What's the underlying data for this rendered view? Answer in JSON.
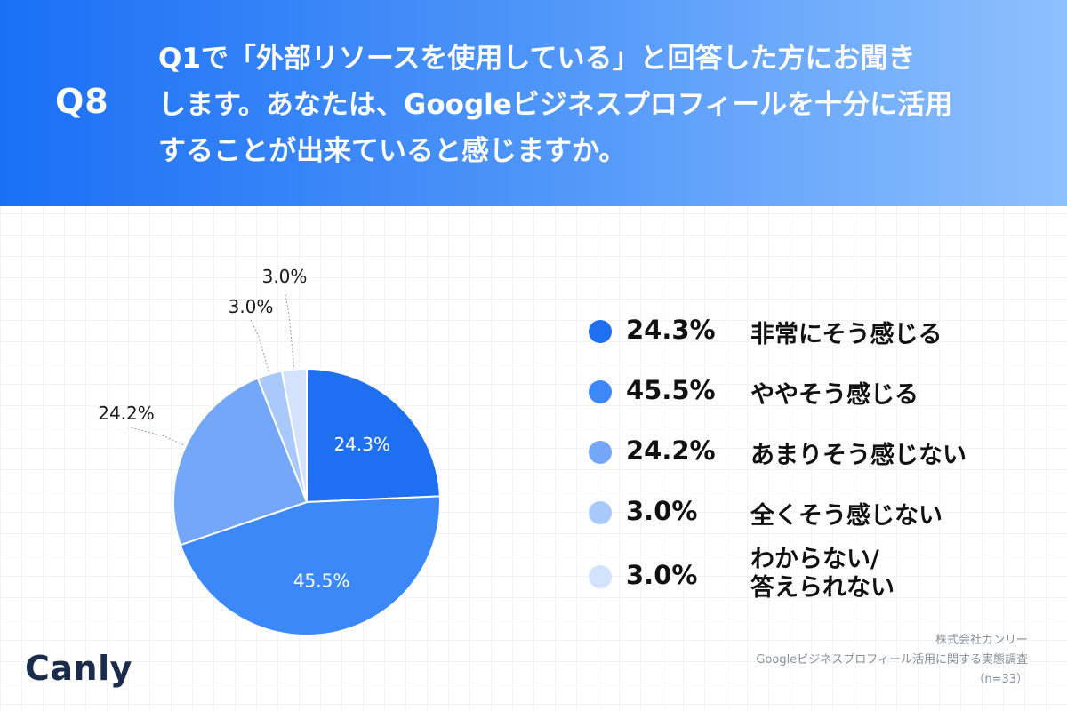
{
  "header": {
    "q_label": "Q8",
    "question_lines": [
      "Q1で「外部リソースを使用している」と回答した方にお聞き",
      "します。あなたは、Googleビジネスプロフィールを十分に活用",
      "することが出来ていると感じますか。"
    ]
  },
  "chart_data": {
    "type": "pie",
    "start_angle_deg": 0,
    "direction": "clockwise",
    "slices": [
      {
        "label": "非常にそう感じる",
        "value": 24.3,
        "display": "24.3%",
        "color": "#1f6ff2"
      },
      {
        "label": "ややそう感じる",
        "value": 45.5,
        "display": "45.5%",
        "color": "#3d88f8"
      },
      {
        "label": "あまりそう感じない",
        "value": 24.2,
        "display": "24.2%",
        "color": "#74a6f9"
      },
      {
        "label": "全くそう感じない",
        "value": 3.0,
        "display": "3.0%",
        "color": "#a9c9fc"
      },
      {
        "label": "わからない/\n答えられない",
        "value": 3.0,
        "display": "3.0%",
        "color": "#d3e3fd"
      }
    ]
  },
  "legend": {
    "items": [
      {
        "pct": "24.3%",
        "label": "非常にそう感じる",
        "color": "#1f6ff2"
      },
      {
        "pct": "45.5%",
        "label": "ややそう感じる",
        "color": "#3d88f8"
      },
      {
        "pct": "24.2%",
        "label": "あまりそう感じない",
        "color": "#74a6f9"
      },
      {
        "pct": "3.0%",
        "label": "全くそう感じない",
        "color": "#a9c9fc"
      },
      {
        "pct": "3.0%",
        "label_line1": "わからない/",
        "label_line2": "答えられない",
        "color": "#d3e3fd"
      }
    ]
  },
  "source": {
    "line1": "株式会社カンリー",
    "line2": "Googleビジネスプロフィール活用に関する実態調査",
    "line3": "（n=33）"
  },
  "logo": {
    "text": "Canly"
  }
}
